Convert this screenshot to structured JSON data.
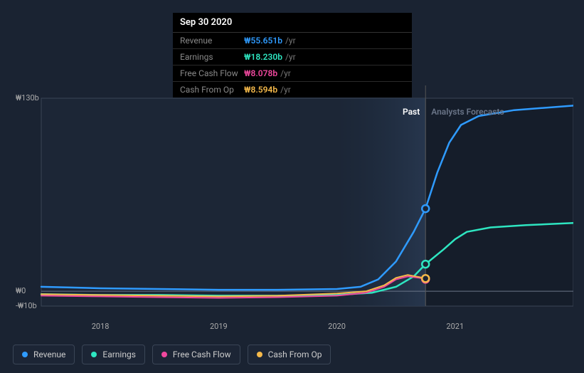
{
  "tooltip": {
    "date": "Sep 30 2020",
    "rows": [
      {
        "label": "Revenue",
        "value": "₩55.651b",
        "unit": "/yr",
        "color": "#2f9bff"
      },
      {
        "label": "Earnings",
        "value": "₩18.230b",
        "unit": "/yr",
        "color": "#2ee6c1"
      },
      {
        "label": "Free Cash Flow",
        "value": "₩8.078b",
        "unit": "/yr",
        "color": "#f0489e"
      },
      {
        "label": "Cash From Op",
        "value": "₩8.594b",
        "unit": "/yr",
        "color": "#f5b94a"
      }
    ]
  },
  "chart": {
    "type": "line",
    "background_color": "#1a2332",
    "plot_bg_left": "#1c2636",
    "plot_bg_right": "#151d2a",
    "shaded_gradient_from": "#1f2e42",
    "shaded_gradient_to": "#283850",
    "border_color": "#3a4556",
    "baseline_color": "#6a7588",
    "y_axis": {
      "min": -10,
      "max": 130,
      "ticks": [
        {
          "v": 130,
          "label": "₩130b"
        },
        {
          "v": 0,
          "label": "₩0"
        },
        {
          "v": -10,
          "label": "-₩10b"
        }
      ]
    },
    "x_axis": {
      "min": 2017.5,
      "max": 2022.0,
      "divider_x": 2020.75,
      "cursor_x": 2020.75,
      "ticks": [
        {
          "v": 2018,
          "label": "2018"
        },
        {
          "v": 2019,
          "label": "2019"
        },
        {
          "v": 2020,
          "label": "2020"
        },
        {
          "v": 2021,
          "label": "2021"
        }
      ]
    },
    "period_labels": {
      "past": {
        "text": "Past",
        "color": "#ffffff",
        "x": 2020.62
      },
      "forecast": {
        "text": "Analysts Forecasts",
        "color": "#6a7588",
        "x": 2021.15
      }
    },
    "series": [
      {
        "name": "Revenue",
        "color": "#2f9bff",
        "width": 2.5,
        "data": [
          [
            2017.5,
            3.0
          ],
          [
            2017.75,
            2.5
          ],
          [
            2018.0,
            2.0
          ],
          [
            2018.5,
            1.5
          ],
          [
            2019.0,
            1.0
          ],
          [
            2019.5,
            1.0
          ],
          [
            2020.0,
            1.5
          ],
          [
            2020.2,
            3.0
          ],
          [
            2020.35,
            8.0
          ],
          [
            2020.5,
            20.0
          ],
          [
            2020.65,
            40.0
          ],
          [
            2020.75,
            55.65
          ],
          [
            2020.85,
            80.0
          ],
          [
            2020.95,
            100.0
          ],
          [
            2021.05,
            112.0
          ],
          [
            2021.2,
            118.0
          ],
          [
            2021.5,
            122.0
          ],
          [
            2022.0,
            125.0
          ]
        ],
        "marker_at": [
          2020.75,
          55.65
        ]
      },
      {
        "name": "Earnings",
        "color": "#2ee6c1",
        "width": 2.5,
        "data": [
          [
            2017.5,
            -2.0
          ],
          [
            2018.0,
            -2.5
          ],
          [
            2018.5,
            -2.5
          ],
          [
            2019.0,
            -3.0
          ],
          [
            2019.5,
            -3.0
          ],
          [
            2020.0,
            -2.5
          ],
          [
            2020.3,
            -1.0
          ],
          [
            2020.5,
            3.0
          ],
          [
            2020.65,
            10.0
          ],
          [
            2020.75,
            18.23
          ],
          [
            2020.9,
            28.0
          ],
          [
            2021.0,
            35.0
          ],
          [
            2021.1,
            40.0
          ],
          [
            2021.3,
            43.0
          ],
          [
            2021.6,
            44.5
          ],
          [
            2022.0,
            46.0
          ]
        ],
        "marker_at": [
          2020.75,
          18.23
        ]
      },
      {
        "name": "Free Cash Flow",
        "color": "#f0489e",
        "width": 2,
        "data": [
          [
            2017.5,
            -3.0
          ],
          [
            2018.0,
            -3.5
          ],
          [
            2018.5,
            -4.0
          ],
          [
            2019.0,
            -4.5
          ],
          [
            2019.5,
            -4.0
          ],
          [
            2020.0,
            -3.0
          ],
          [
            2020.25,
            -1.0
          ],
          [
            2020.4,
            3.0
          ],
          [
            2020.5,
            8.0
          ],
          [
            2020.6,
            10.0
          ],
          [
            2020.7,
            9.0
          ],
          [
            2020.75,
            8.08
          ]
        ],
        "marker_at": [
          2020.75,
          8.08
        ]
      },
      {
        "name": "Cash From Op",
        "color": "#f5b94a",
        "width": 2,
        "data": [
          [
            2017.5,
            -2.0
          ],
          [
            2018.0,
            -2.5
          ],
          [
            2018.5,
            -3.0
          ],
          [
            2019.0,
            -3.5
          ],
          [
            2019.5,
            -3.0
          ],
          [
            2020.0,
            -1.5
          ],
          [
            2020.25,
            0.0
          ],
          [
            2020.4,
            4.0
          ],
          [
            2020.5,
            9.0
          ],
          [
            2020.6,
            11.0
          ],
          [
            2020.7,
            9.5
          ],
          [
            2020.75,
            8.59
          ]
        ],
        "marker_at": [
          2020.75,
          8.59
        ]
      }
    ],
    "legend": [
      {
        "label": "Revenue",
        "color": "#2f9bff"
      },
      {
        "label": "Earnings",
        "color": "#2ee6c1"
      },
      {
        "label": "Free Cash Flow",
        "color": "#f0489e"
      },
      {
        "label": "Cash From Op",
        "color": "#f5b94a"
      }
    ]
  }
}
